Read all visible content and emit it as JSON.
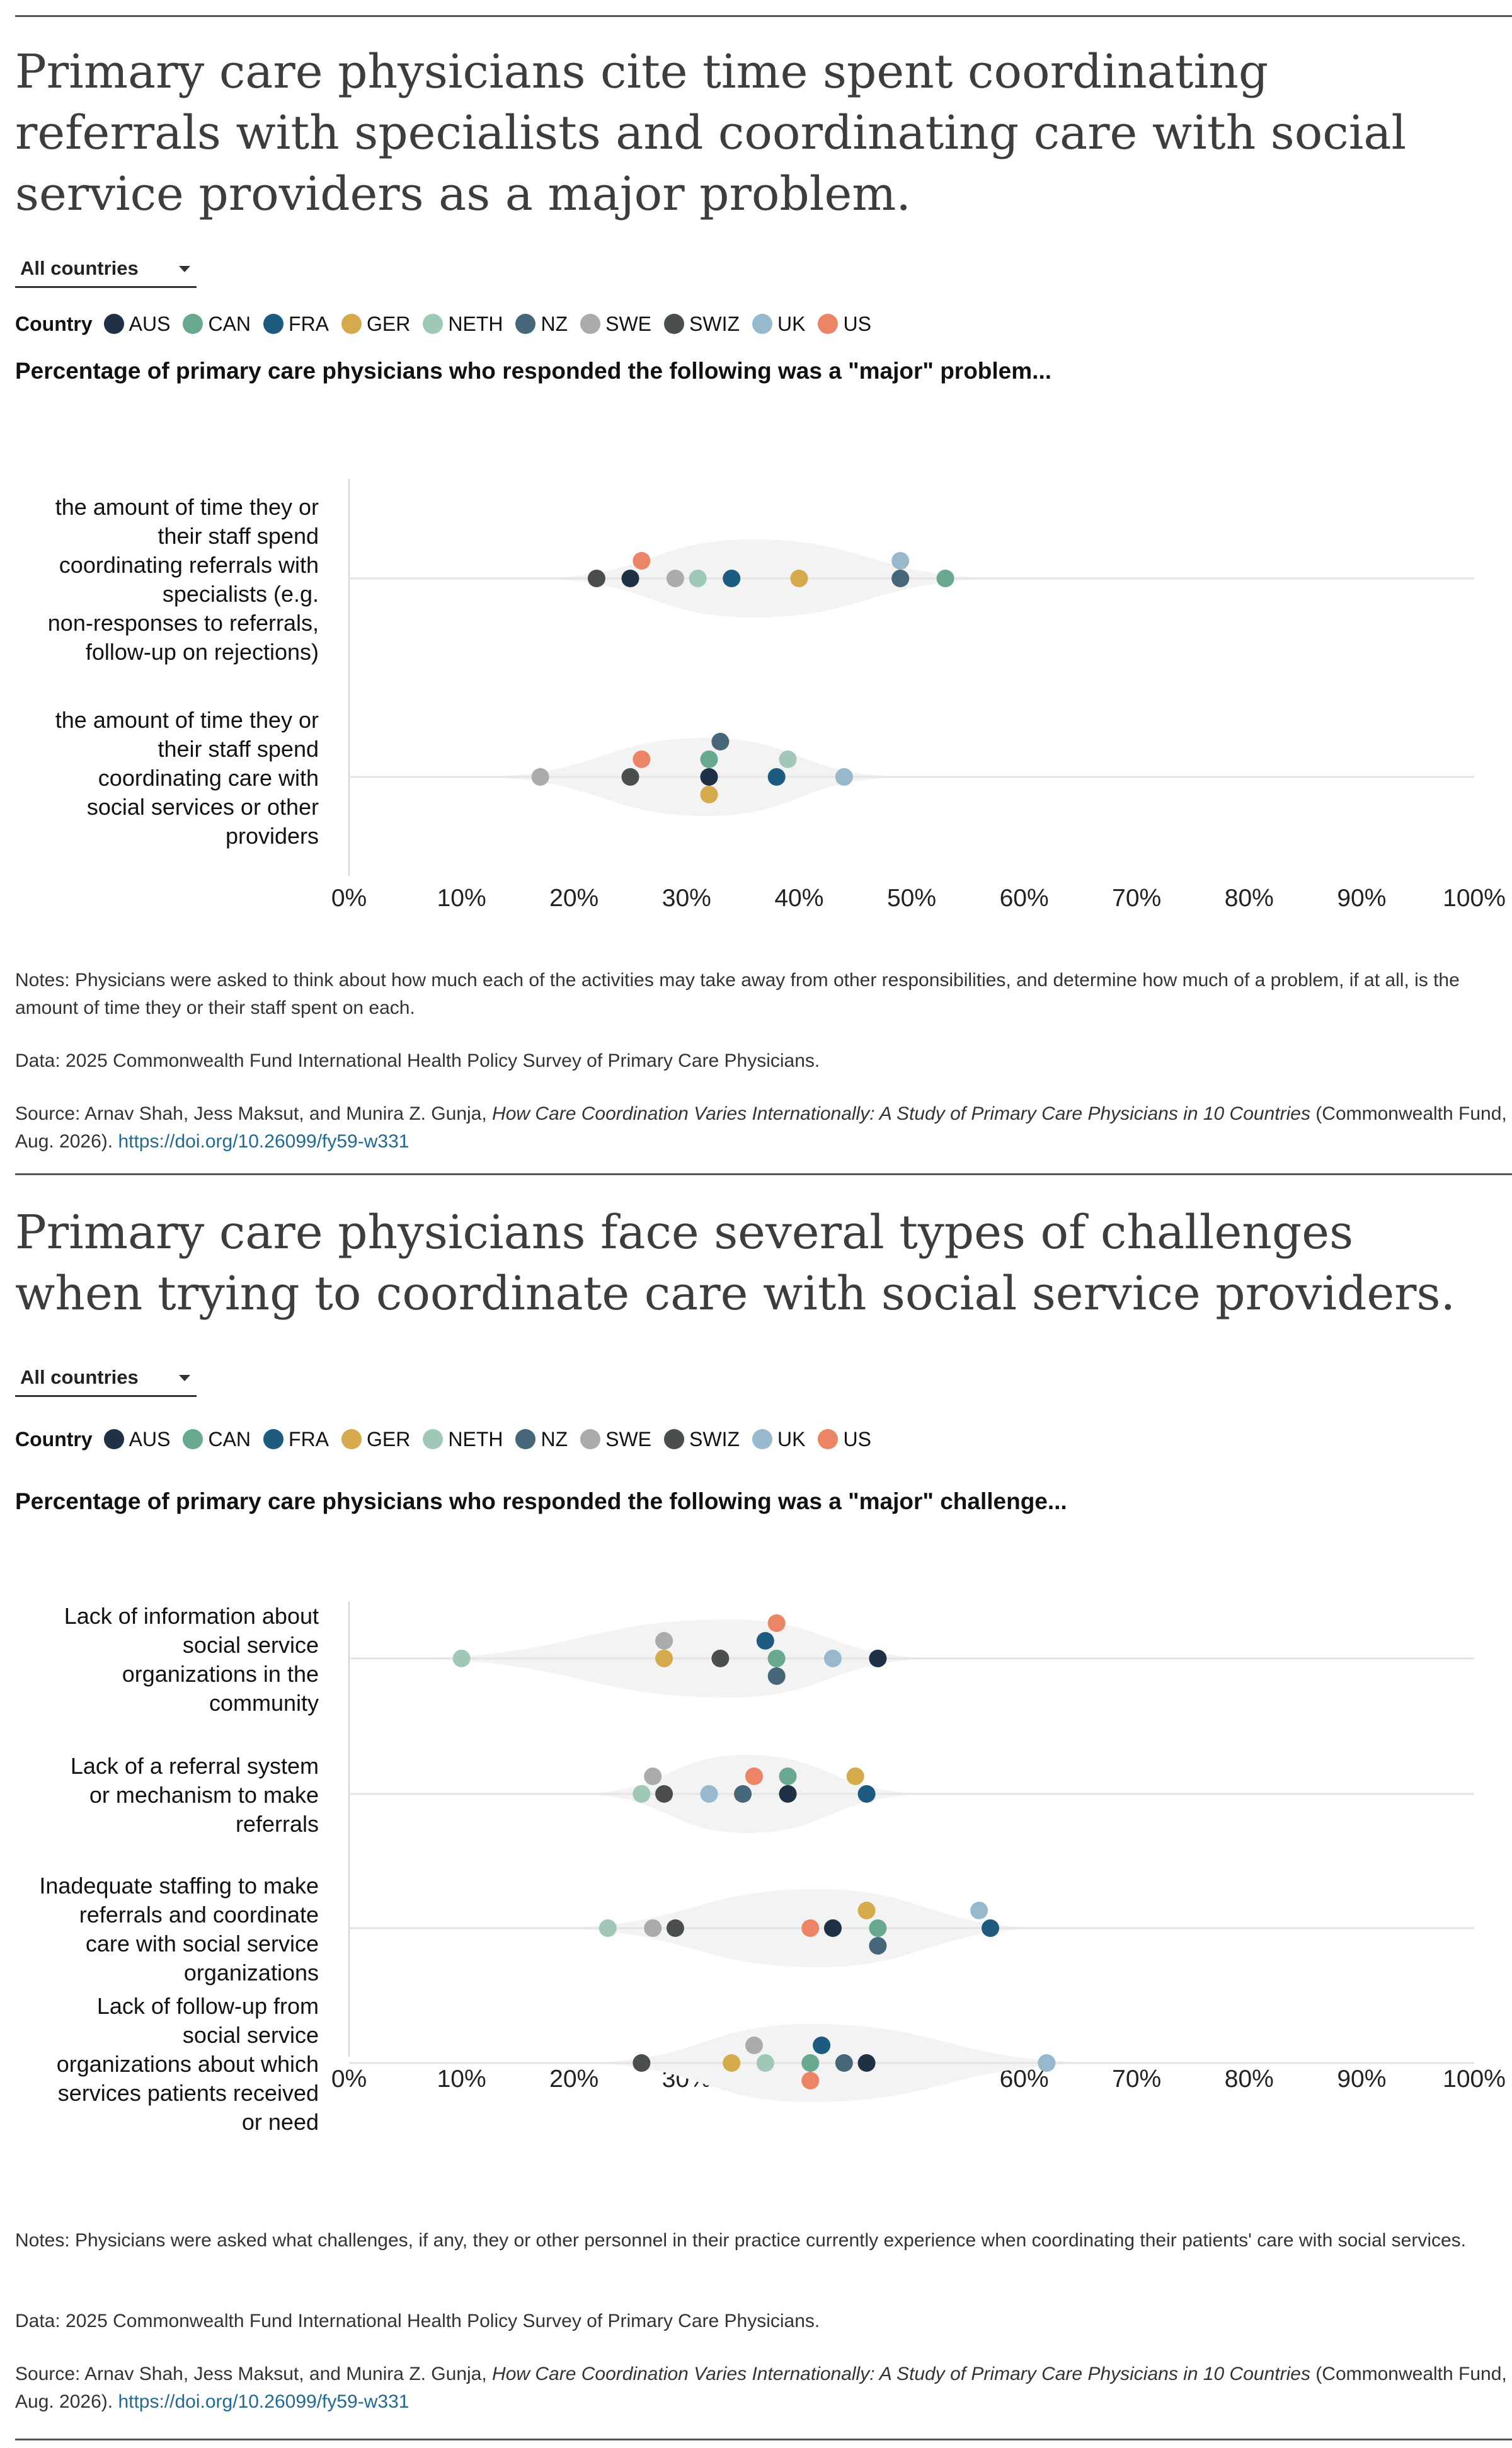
{
  "countries": [
    {
      "code": "AUS",
      "color": "#1f3145"
    },
    {
      "code": "CAN",
      "color": "#69a98f"
    },
    {
      "code": "FRA",
      "color": "#1e5b80"
    },
    {
      "code": "GER",
      "color": "#d4aa4c"
    },
    {
      "code": "NETH",
      "color": "#9fc9b6"
    },
    {
      "code": "NZ",
      "color": "#46667a"
    },
    {
      "code": "SWE",
      "color": "#ababab"
    },
    {
      "code": "SWIZ",
      "color": "#4b4f4b"
    },
    {
      "code": "UK",
      "color": "#97b8cd"
    },
    {
      "code": "US",
      "color": "#ec8466"
    }
  ],
  "panel1": {
    "title": "Primary care physicians cite time spent coordinating referrals with specialists and coordinating care with social service providers as a major problem.",
    "dropdown": "All countries",
    "legend_title": "Country",
    "subtitle": "Percentage of primary care physicians who responded the following was a \"major\" problem...",
    "notes": "Notes: Physicians were asked to think about how much each of the activities may take away from other responsibilities, and determine how much of a problem, if at all, is the amount of time they or their staff spent on each.",
    "data_note": "Data: 2025 Commonwealth Fund International Health Policy Survey of Primary Care Physicians.",
    "source_prefix": "Source: Arnav Shah, Jess Maksut, and Munira Z. Gunja, ",
    "source_title": "How Care Coordination Varies Internationally: A Study of Primary Care Physicians in 10 Countries",
    "source_suffix": " (Commonwealth Fund, Aug. 2026). ",
    "source_link": "https://doi.org/10.26099/fy59-w331"
  },
  "panel2": {
    "title": "Primary care physicians face several types of challenges when trying to coordinate care with social service providers.",
    "dropdown": "All countries",
    "legend_title": "Country",
    "subtitle": "Percentage of primary care physicians who responded the following was a \"major\" challenge...",
    "notes": "Notes: Physicians were asked what challenges, if any, they or other personnel in their practice currently experience when coordinating their patients' care with social services.",
    "data_note": "Data: 2025 Commonwealth Fund International Health Policy Survey of Primary Care Physicians.",
    "source_prefix": "Source: Arnav Shah, Jess Maksut, and Munira Z. Gunja, ",
    "source_title": "How Care Coordination Varies Internationally: A Study of Primary Care Physicians in 10 Countries",
    "source_suffix": " (Commonwealth Fund, Aug. 2026). ",
    "source_link": "https://doi.org/10.26099/fy59-w331"
  },
  "chart_data": [
    {
      "type": "scatter",
      "title": "Percentage of primary care physicians who responded the following was a \"major\" problem...",
      "xlim": [
        0,
        100
      ],
      "x_ticks": [
        "0%",
        "10%",
        "20%",
        "30%",
        "40%",
        "50%",
        "60%",
        "70%",
        "80%",
        "90%",
        "100%"
      ],
      "series_names": [
        "AUS",
        "CAN",
        "FRA",
        "GER",
        "NETH",
        "NZ",
        "SWE",
        "SWIZ",
        "UK",
        "US"
      ],
      "categories": [
        {
          "label": "the amount of time they or their staff spend coordinating referrals with specialists (e.g. non-responses to referrals, follow-up on rejections)",
          "values": {
            "AUS": 25,
            "CAN": 53,
            "FRA": 34,
            "GER": 40,
            "NETH": 31,
            "NZ": 49,
            "SWE": 29,
            "SWIZ": 22,
            "UK": 49,
            "US": 26
          }
        },
        {
          "label": "the amount of time they or their staff spend coordinating care with social services or other providers",
          "values": {
            "AUS": 32,
            "CAN": 32,
            "FRA": 38,
            "GER": 32,
            "NETH": 39,
            "NZ": 33,
            "SWE": 17,
            "SWIZ": 25,
            "UK": 44,
            "US": 26
          }
        }
      ]
    },
    {
      "type": "scatter",
      "title": "Percentage of primary care physicians who responded the following was a \"major\" challenge...",
      "xlim": [
        0,
        100
      ],
      "x_ticks": [
        "0%",
        "10%",
        "20%",
        "30%",
        "40%",
        "50%",
        "60%",
        "70%",
        "80%",
        "90%",
        "100%"
      ],
      "series_names": [
        "AUS",
        "CAN",
        "FRA",
        "GER",
        "NETH",
        "NZ",
        "SWE",
        "SWIZ",
        "UK",
        "US"
      ],
      "categories": [
        {
          "label": "Lack of information about social service organizations in the community",
          "values": {
            "AUS": 47,
            "CAN": 38,
            "FRA": 37,
            "GER": 28,
            "NETH": 10,
            "NZ": 38,
            "SWE": 28,
            "SWIZ": 33,
            "UK": 43,
            "US": 38
          }
        },
        {
          "label": "Lack of a referral system or mechanism to make referrals",
          "values": {
            "AUS": 39,
            "CAN": 39,
            "FRA": 46,
            "GER": 45,
            "NETH": 26,
            "NZ": 35,
            "SWE": 27,
            "SWIZ": 28,
            "UK": 32,
            "US": 36
          }
        },
        {
          "label": "Inadequate staffing to make referrals and coordinate care with social service organizations",
          "values": {
            "AUS": 43,
            "CAN": 47,
            "FRA": 57,
            "GER": 46,
            "NETH": 23,
            "NZ": 47,
            "SWE": 27,
            "SWIZ": 29,
            "UK": 56,
            "US": 41
          }
        },
        {
          "label": "Lack of follow-up from social service organizations about which services patients received or need",
          "values": {
            "AUS": 46,
            "CAN": 41,
            "FRA": 42,
            "GER": 34,
            "NETH": 37,
            "NZ": 44,
            "SWE": 36,
            "SWIZ": 26,
            "UK": 62,
            "US": 41
          }
        }
      ]
    }
  ]
}
